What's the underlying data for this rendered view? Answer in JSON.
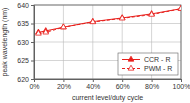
{
  "chart_data": {
    "type": "line",
    "x_label": "current level/duty cycle",
    "y_label": "peak wavelength (nm)",
    "x": [
      3,
      8,
      20,
      40,
      60,
      80,
      100
    ],
    "series": [
      {
        "name": "CCR - R",
        "color": "#e8201c",
        "marker": "triangle",
        "line_style": "solid",
        "values": [
          632.6,
          633.0,
          634.0,
          635.5,
          636.5,
          637.6,
          639.0
        ]
      },
      {
        "name": "PWM - R",
        "color": "#e8201c",
        "marker": "triangle-open",
        "line_style": "dashed",
        "values": [
          632.3,
          632.6,
          634.0,
          635.4,
          636.4,
          637.4,
          639.0
        ]
      }
    ],
    "xlim": [
      0,
      100
    ],
    "xticks": [
      {
        "value": 0,
        "label": "0%"
      },
      {
        "value": 20,
        "label": "20%"
      },
      {
        "value": 40,
        "label": "40%"
      },
      {
        "value": 60,
        "label": "60%"
      },
      {
        "value": 80,
        "label": "80%"
      },
      {
        "value": 100,
        "label": "100%"
      }
    ],
    "ylim": [
      620,
      640
    ],
    "yticks": [
      620,
      625,
      630,
      635,
      640
    ],
    "grid": true,
    "legend": "lower right"
  }
}
